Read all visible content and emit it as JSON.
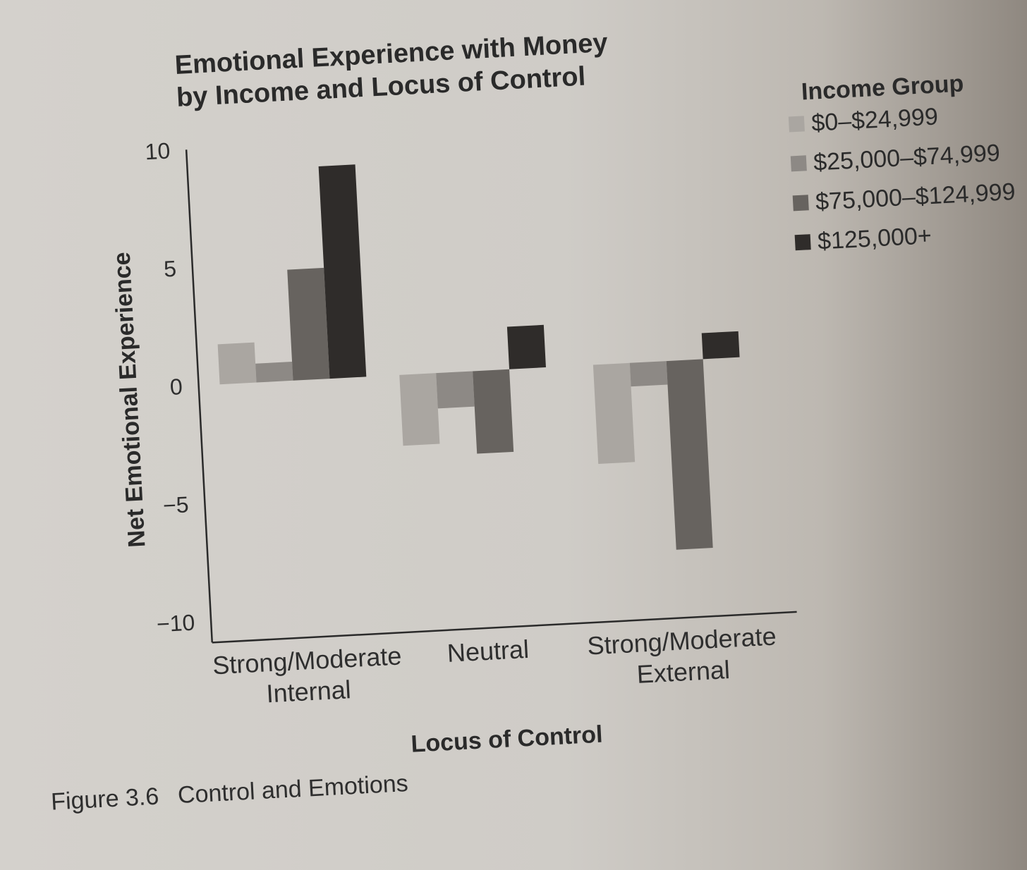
{
  "chart_data": {
    "type": "bar",
    "title": [
      "Emotional Experience with Money",
      "by Income and Locus of Control"
    ],
    "xlabel": "Locus of Control",
    "ylabel": "Net Emotional Experience",
    "ylim": [
      -10,
      10
    ],
    "yticks": [
      10,
      5,
      0,
      -5,
      -10
    ],
    "ytick_labels": [
      "10",
      "5",
      "0",
      "−5",
      "−10"
    ],
    "categories": [
      [
        "Strong/Moderate",
        "Internal"
      ],
      [
        "Neutral"
      ],
      [
        "Strong/Moderate",
        "External"
      ]
    ],
    "legend_title": "Income Group",
    "legend_position": "top-right",
    "grid": false,
    "series": [
      {
        "name": "$0–$24,999",
        "values": [
          1.7,
          -3.0,
          -4.2
        ],
        "color": "#aaa6a1"
      },
      {
        "name": "$25,000–$74,999",
        "values": [
          0.8,
          -1.5,
          -1.0
        ],
        "color": "#8d8985"
      },
      {
        "name": "$75,000–$124,999",
        "values": [
          4.7,
          -3.5,
          -8.0
        ],
        "color": "#67635f"
      },
      {
        "name": "$125,000+",
        "values": [
          9.0,
          1.8,
          1.1
        ],
        "color": "#2f2c2a"
      }
    ]
  },
  "caption": {
    "label": "Figure 3.6",
    "text": "Control and Emotions"
  }
}
